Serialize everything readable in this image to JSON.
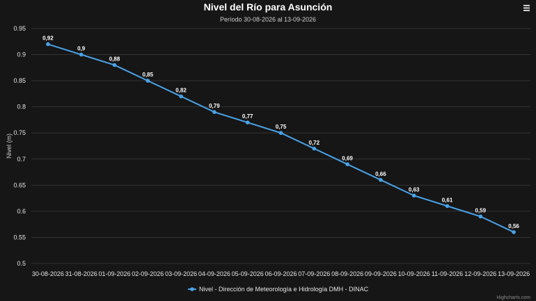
{
  "chart_data": {
    "type": "line",
    "title": "Nivel del Río para Asunción",
    "subtitle": "Período 30-08-2026 al 13-09-2026",
    "ylabel": "Nivel (m)",
    "xlabel": "",
    "categories": [
      "30-08-2026",
      "31-08-2026",
      "01-09-2026",
      "02-09-2026",
      "03-09-2026",
      "04-09-2026",
      "05-09-2026",
      "06-09-2026",
      "07-09-2026",
      "08-09-2026",
      "09-09-2026",
      "10-09-2026",
      "11-09-2026",
      "12-09-2026",
      "13-09-2026"
    ],
    "series": [
      {
        "name": "Nivel - Dirección de Meteorología e Hidrología DMH - DINAC",
        "values": [
          0.92,
          0.9,
          0.88,
          0.85,
          0.82,
          0.79,
          0.77,
          0.75,
          0.72,
          0.69,
          0.66,
          0.63,
          0.61,
          0.59,
          0.56
        ],
        "labels": [
          "0,92",
          "0,9",
          "0,88",
          "0,85",
          "0,82",
          "0,79",
          "0,77",
          "0,75",
          "0,72",
          "0,69",
          "0,66",
          "0,63",
          "0,61",
          "0,59",
          "0,56"
        ],
        "color": "#4aa3e8"
      }
    ],
    "ylim": [
      0.5,
      0.95
    ],
    "yticks": [
      "0.5",
      "0.55",
      "0.6",
      "0.65",
      "0.7",
      "0.75",
      "0.8",
      "0.85",
      "0.9",
      "0.95"
    ],
    "grid": true,
    "legend": "bottom-center"
  },
  "ui": {
    "menu_icon": "hamburger-menu-icon",
    "credits": "Highcharts.com"
  },
  "colors": {
    "background": "#161616",
    "series": "#4aa3e8",
    "grid": "#333333"
  }
}
